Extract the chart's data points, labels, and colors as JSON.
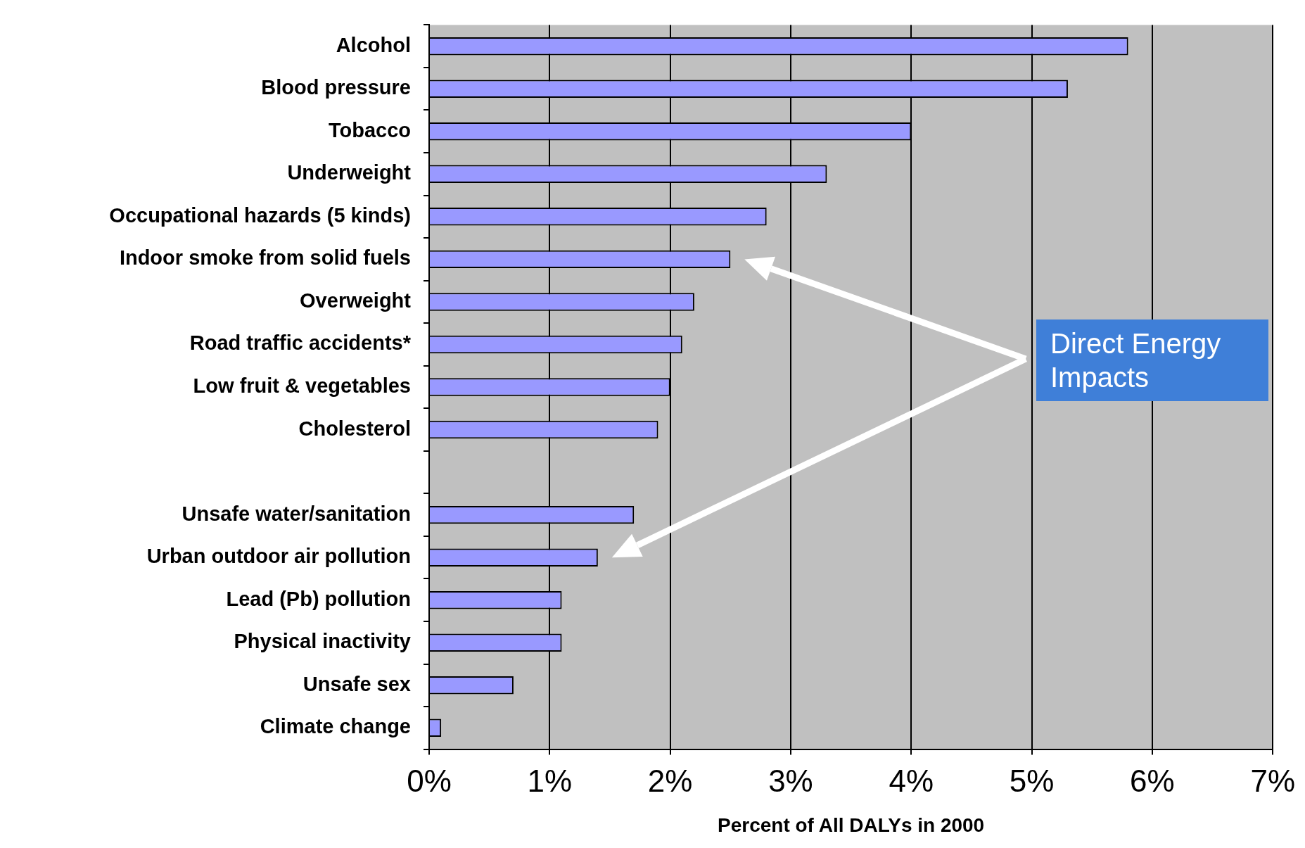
{
  "chart_data": {
    "type": "bar",
    "orientation": "horizontal",
    "xlabel": "Percent of All DALYs in 2000",
    "categories": [
      "Alcohol",
      "Blood pressure",
      "Tobacco",
      "Underweight",
      "Occupational hazards (5 kinds)",
      "Indoor smoke from solid fuels",
      "Overweight",
      "Road traffic accidents*",
      "Low fruit & vegetables",
      "Cholesterol",
      null,
      "Unsafe water/sanitation",
      "Urban outdoor air pollution",
      "Lead (Pb) pollution",
      "Physical inactivity",
      "Unsafe sex",
      "Climate change"
    ],
    "values": [
      5.8,
      5.3,
      4.0,
      3.3,
      2.8,
      2.5,
      2.2,
      2.1,
      2.0,
      1.9,
      null,
      1.7,
      1.4,
      1.1,
      1.1,
      0.7,
      0.1
    ],
    "color": "#9999ff",
    "xlim": [
      0,
      7
    ],
    "xticks": [
      {
        "value": 0,
        "label": "0%"
      },
      {
        "value": 1,
        "label": "1%"
      },
      {
        "value": 2,
        "label": "2%"
      },
      {
        "value": 3,
        "label": "3%"
      },
      {
        "value": 4,
        "label": "4%"
      },
      {
        "value": 5,
        "label": "5%"
      },
      {
        "value": 6,
        "label": "6%"
      },
      {
        "value": 7,
        "label": "7%"
      }
    ],
    "grid": "x",
    "legend": false,
    "annotations": [
      "Direct Energy Impacts"
    ]
  }
}
